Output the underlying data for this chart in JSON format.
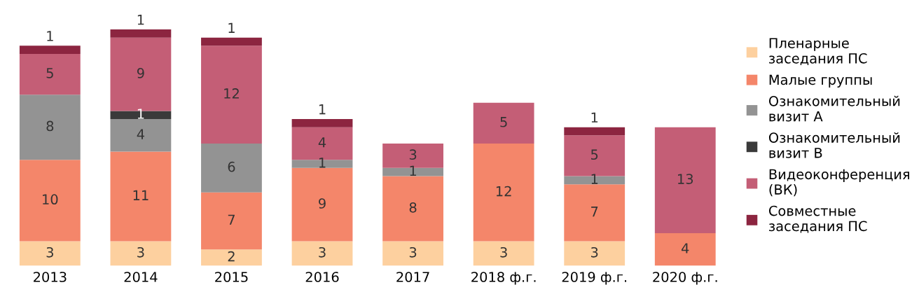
{
  "chart_data": {
    "type": "bar",
    "stacked": true,
    "data_labels": true,
    "legend": "right",
    "grid": false,
    "tick_labels": "x",
    "categories": [
      "2013",
      "2014",
      "2015",
      "2016",
      "2017",
      "2018 ф.г.",
      "2019 ф.г.",
      "2020 ф.г."
    ],
    "series": [
      {
        "name": "Пленарные\nзаседания ПС",
        "color": "#fdd09f",
        "values": [
          3,
          3,
          2,
          3,
          3,
          3,
          3,
          null
        ]
      },
      {
        "name": "Малые группы",
        "color": "#f4866a",
        "values": [
          10,
          11,
          7,
          9,
          8,
          12,
          7,
          4
        ]
      },
      {
        "name": "Ознакомительный\nвизит А",
        "color": "#939393",
        "values": [
          8,
          4,
          6,
          1,
          1,
          null,
          1,
          null
        ]
      },
      {
        "name": "Ознакомительный\nвизит В",
        "color": "#3a3a3a",
        "values": [
          null,
          1,
          null,
          null,
          null,
          null,
          null,
          null
        ]
      },
      {
        "name": "Видеоконференция\n(ВК)",
        "color": "#c45e76",
        "values": [
          5,
          9,
          12,
          4,
          3,
          5,
          5,
          13
        ]
      },
      {
        "name": "Совместные\nзаседания ПС",
        "color": "#8c2540",
        "values": [
          1,
          1,
          1,
          1,
          null,
          null,
          1,
          null
        ]
      }
    ]
  }
}
